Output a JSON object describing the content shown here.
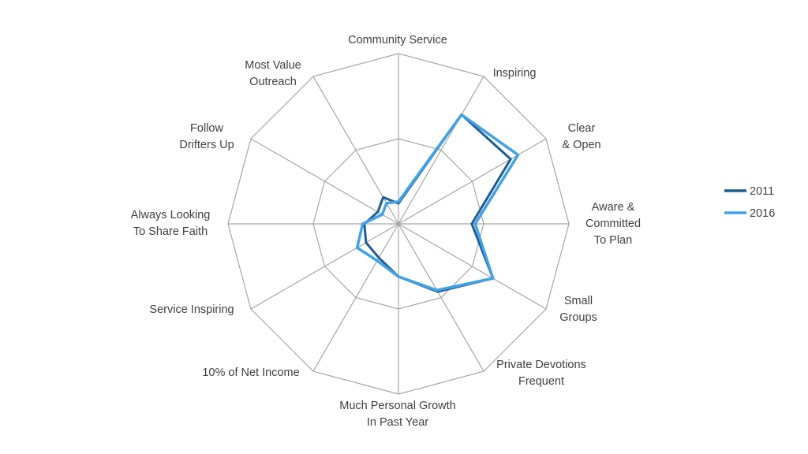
{
  "chart_data": {
    "type": "radar",
    "title": "",
    "axes": [
      [
        "Community Service"
      ],
      [
        "Inspiring"
      ],
      [
        "Clear",
        "& Open"
      ],
      [
        "Aware &",
        "Committed",
        "To Plan"
      ],
      [
        "Small",
        "Groups"
      ],
      [
        "Private Devotions",
        "Frequent"
      ],
      [
        "Much Personal Growth",
        "In Past Year"
      ],
      [
        "10% of Net Income"
      ],
      [
        "Service Inspiring"
      ],
      [
        "Always Looking",
        "To Share Faith"
      ],
      [
        "Follow",
        "Drifters Up"
      ],
      [
        "Most Value",
        "Outreach"
      ]
    ],
    "range": [
      0,
      100
    ],
    "grid_levels": [
      50,
      100
    ],
    "legend_position": "right",
    "series": [
      {
        "name": "2011",
        "color": "#1f5c91",
        "values": [
          12,
          74,
          76,
          43,
          64,
          46,
          31,
          23,
          22,
          20,
          14,
          18
        ]
      },
      {
        "name": "2016",
        "color": "#42a2e6",
        "values": [
          13,
          74,
          81,
          45,
          64,
          45,
          31,
          25,
          28,
          21,
          11,
          14
        ]
      }
    ]
  }
}
